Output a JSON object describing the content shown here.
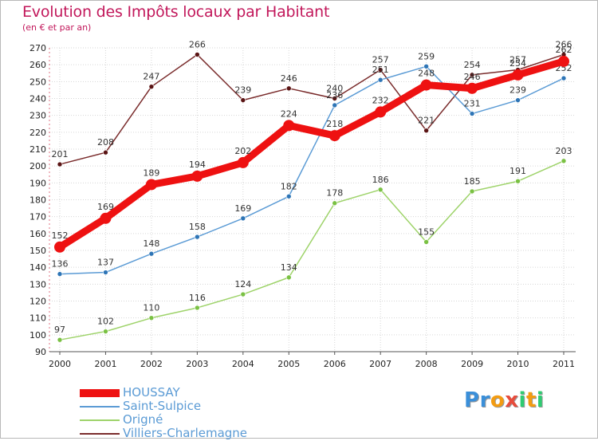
{
  "title": "Evolution des Impôts locaux par Habitant",
  "subtitle": "(en € et par an)",
  "chart_data": {
    "type": "line",
    "title": "Evolution des Impôts locaux par Habitant",
    "subtitle": "(en € et par an)",
    "xlabel": "",
    "ylabel": "",
    "categories": [
      "2000",
      "2001",
      "2002",
      "2003",
      "2004",
      "2005",
      "2006",
      "2007",
      "2008",
      "2009",
      "2010",
      "2011"
    ],
    "ylim": [
      90,
      270
    ],
    "yticks": [
      90,
      100,
      110,
      120,
      130,
      140,
      150,
      160,
      170,
      180,
      190,
      200,
      210,
      220,
      230,
      240,
      250,
      260,
      270
    ],
    "grid": true,
    "legend_position": "bottom-left",
    "series": [
      {
        "name": "Villiers-Charlemagne",
        "color": "#7a2c2c",
        "marker": "#5a1414",
        "values": [
          201,
          208,
          247,
          266,
          239,
          246,
          240,
          257,
          221,
          254,
          257,
          266
        ]
      },
      {
        "name": "Saint-Sulpice",
        "color": "#5b9bd5",
        "marker": "#2e75b6",
        "values": [
          136,
          137,
          148,
          158,
          169,
          182,
          236,
          251,
          259,
          231,
          239,
          252
        ]
      },
      {
        "name": "Origné",
        "color": "#9ed36a",
        "marker": "#7ac143",
        "values": [
          97,
          102,
          110,
          116,
          124,
          134,
          178,
          186,
          155,
          185,
          191,
          203
        ]
      },
      {
        "name": "HOUSSAY",
        "color": "#ee1111",
        "marker": "#ee1111",
        "values": [
          152,
          169,
          189,
          194,
          202,
          224,
          218,
          232,
          248,
          246,
          254,
          262
        ],
        "emphasis": true
      }
    ]
  },
  "legend": [
    {
      "label": "HOUSSAY",
      "color": "#ee1111",
      "text_color": "#5b9bd5"
    },
    {
      "label": "Saint-Sulpice",
      "color": "#5b9bd5",
      "text_color": "#5b9bd5"
    },
    {
      "label": "Origné",
      "color": "#9ed36a",
      "text_color": "#5b9bd5"
    },
    {
      "label": "Villiers-Charlemagne",
      "color": "#7a2c2c",
      "text_color": "#5b9bd5"
    }
  ],
  "logo": {
    "letters": [
      "P",
      "r",
      "o",
      "x",
      "i",
      "t",
      "i"
    ],
    "colors": [
      "#3a8fd9",
      "#3a8fd9",
      "#f39c12",
      "#e74c3c",
      "#2ecc71",
      "#f39c12",
      "#2ecc71"
    ]
  }
}
